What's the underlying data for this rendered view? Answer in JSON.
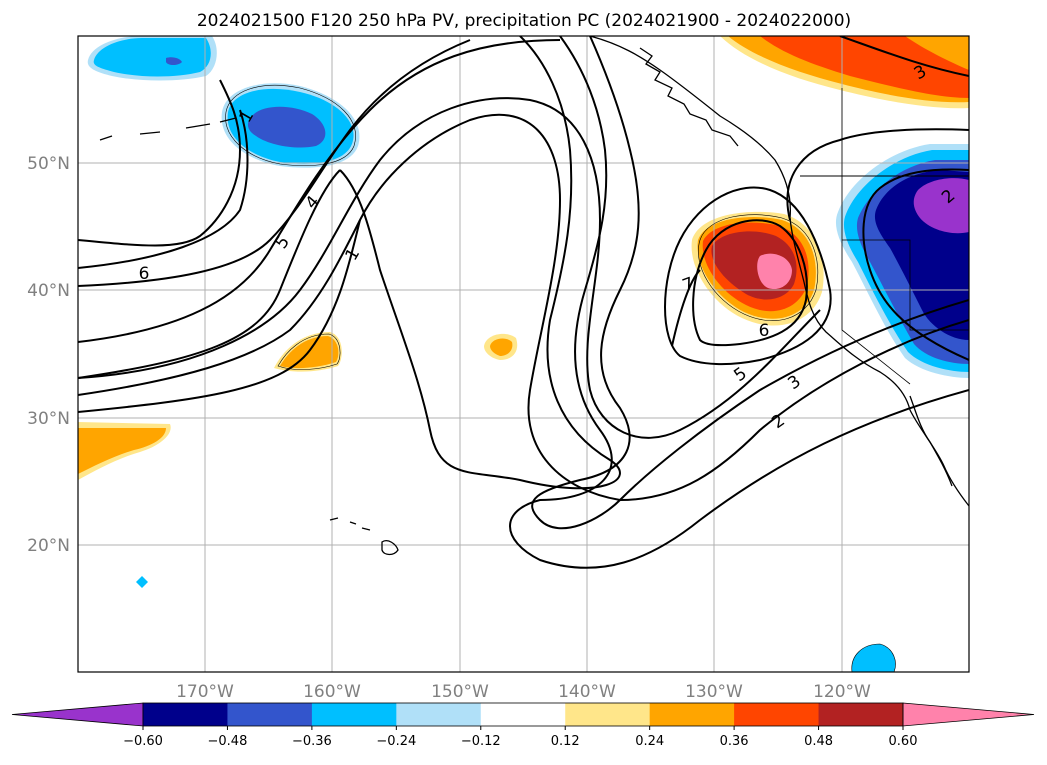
{
  "title": "2024021500 F120 250 hPa PV, precipitation PC (2024021900 - 2024022000)",
  "map": {
    "lon_range": [
      -180,
      -110
    ],
    "lat_range": [
      10,
      60
    ],
    "lon_ticks": [
      {
        "value": -170,
        "label": "170°W"
      },
      {
        "value": -160,
        "label": "160°W"
      },
      {
        "value": -150,
        "label": "150°W"
      },
      {
        "value": -140,
        "label": "140°W"
      },
      {
        "value": -130,
        "label": "130°W"
      },
      {
        "value": -120,
        "label": "120°W"
      }
    ],
    "lat_ticks": [
      {
        "value": 20,
        "label": "20°N"
      },
      {
        "value": 30,
        "label": "30°N"
      },
      {
        "value": 40,
        "label": "40°N"
      },
      {
        "value": 50,
        "label": "50°N"
      }
    ],
    "grid": true,
    "gridline_color": "#b0b0b0",
    "tick_label_color": "#808080"
  },
  "pv_contour_labels": [
    "1",
    "2",
    "3",
    "4",
    "5",
    "6",
    "7"
  ],
  "precip_colorbar": {
    "colors": [
      "#9933cc",
      "#00008b",
      "#3355cc",
      "#00bfff",
      "#b0e0f8",
      "#ffffff",
      "#ffe68a",
      "#ffa500",
      "#ff4500",
      "#b22222",
      "#ff82ab"
    ],
    "levels": [
      "−0.60",
      "−0.48",
      "−0.36",
      "−0.24",
      "−0.12",
      "0.12",
      "0.24",
      "0.36",
      "0.48",
      "0.60"
    ],
    "extend": "both"
  }
}
